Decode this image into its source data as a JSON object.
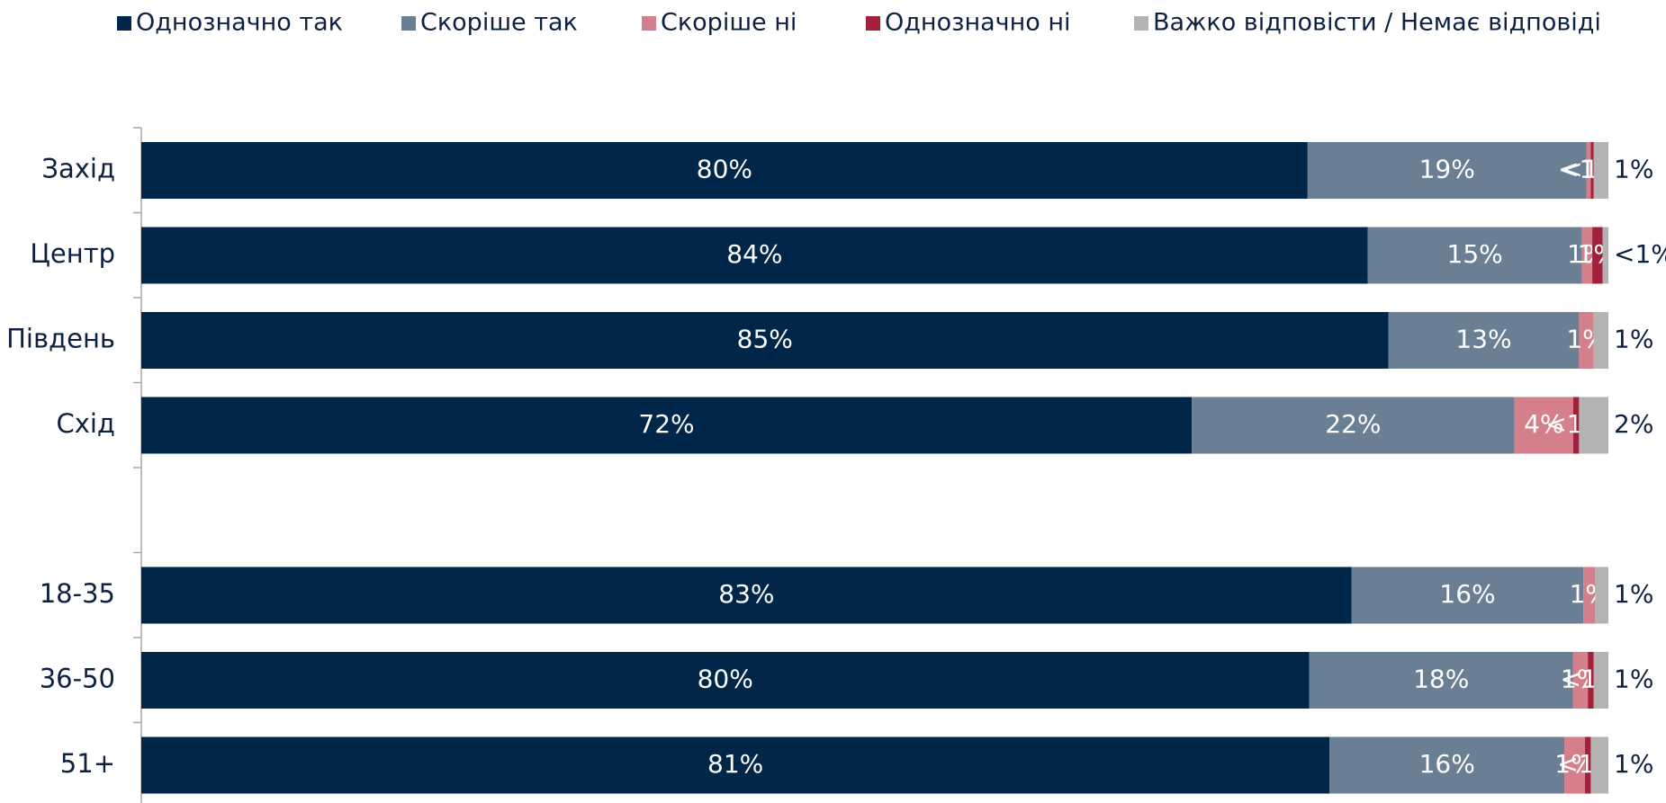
{
  "chart_data": {
    "type": "stacked-bar-horizontal",
    "categories": [
      "Захід",
      "Центр",
      "Південь",
      "Схід",
      null,
      "18-35",
      "36-50",
      "51+"
    ],
    "xlim": [
      0,
      100
    ],
    "series": [
      {
        "name": "Однозначно так",
        "color": "#002649",
        "values": [
          79.5,
          83.6,
          85,
          71.6,
          null,
          82.5,
          79.6,
          81
        ],
        "value_labels": [
          "80%",
          "84%",
          "85%",
          "72%",
          null,
          "83%",
          "80%",
          "81%"
        ]
      },
      {
        "name": "Скоріше так",
        "color": "#6a7f93",
        "values": [
          19,
          14.6,
          13,
          22,
          null,
          15.8,
          18,
          16
        ],
        "value_labels": [
          "19%",
          "15%",
          "13%",
          "22%",
          null,
          "16%",
          "18%",
          "16%"
        ]
      },
      {
        "name": "Скоріше ні",
        "color": "#d57f8a",
        "values": [
          0.3,
          0.7,
          1,
          4,
          null,
          0.8,
          1,
          1.4
        ],
        "value_labels": [
          "<1%",
          "1%",
          "1%",
          "4%",
          null,
          "1%",
          "1%",
          "1%"
        ]
      },
      {
        "name": "Однозначно ні",
        "color": "#a3203a",
        "values": [
          0.2,
          0.7,
          null,
          0.4,
          null,
          null,
          0.4,
          0.4
        ],
        "value_labels": [
          "<1%",
          "1%",
          null,
          "<1%",
          null,
          null,
          "<1%",
          "<1%"
        ]
      },
      {
        "name": "Важко відповісти / Немає відповіді",
        "color": "#b3b3b3",
        "values": [
          1,
          0.4,
          1,
          2,
          null,
          0.9,
          1,
          1.2
        ],
        "value_labels": [
          "1%",
          "<1%",
          "1%",
          "2%",
          null,
          "1%",
          "1%",
          "1%"
        ]
      }
    ]
  }
}
